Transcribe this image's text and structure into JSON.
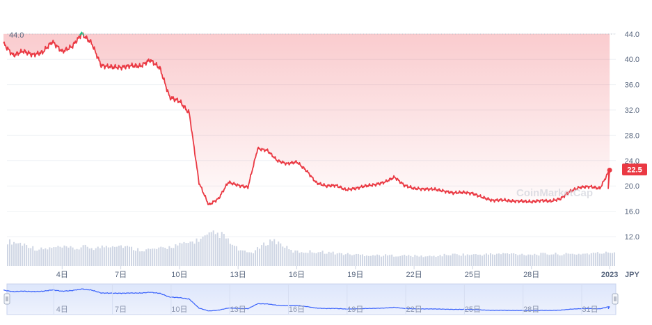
{
  "chart_data": {
    "type": "area",
    "currency": "JPY",
    "y_ticks": [
      "12.0",
      "16.0",
      "20.0",
      "24.0",
      "28.0",
      "32.0",
      "36.0",
      "40.0",
      "44.0"
    ],
    "ylim": [
      12,
      45
    ],
    "x_ticks": [
      "4日",
      "7日",
      "10日",
      "13日",
      "16日",
      "19日",
      "22日",
      "25日",
      "28日",
      "2023"
    ],
    "navigator_ticks": [
      "4日",
      "7日",
      "10日",
      "13日",
      "16日",
      "19日",
      "22日",
      "25日",
      "28日",
      "31日"
    ],
    "max_label": "44.0",
    "current_price_label": "22.5",
    "watermark": "CoinMarketCap",
    "series": [
      {
        "x": [
          1,
          1.5,
          2,
          2.5,
          3,
          3.5,
          4,
          4.5,
          5,
          5.5,
          6,
          6.5,
          7,
          7.5,
          8,
          8.5,
          9,
          9.5,
          10,
          10.5,
          11,
          11.5,
          12,
          12.5,
          13,
          13.5,
          14,
          14.5,
          15,
          15.5,
          16,
          16.5,
          17,
          17.5,
          18,
          18.5,
          19,
          19.5,
          20,
          20.5,
          21,
          21.5,
          22,
          22.5,
          23,
          23.5,
          24,
          24.5,
          25,
          25.5,
          26,
          26.5,
          27,
          27.5,
          28,
          28.5,
          29,
          29.5,
          30,
          30.5,
          31,
          31.5,
          32
        ],
        "values": [
          42.5,
          40.6,
          41.3,
          40.7,
          41.1,
          42.8,
          41.2,
          42.0,
          44.0,
          42.6,
          39.0,
          38.8,
          38.7,
          39.0,
          38.9,
          39.9,
          38.6,
          34.0,
          33.4,
          31.5,
          20.5,
          17.0,
          18.0,
          20.6,
          20.1,
          19.8,
          25.9,
          25.6,
          24.0,
          23.5,
          23.8,
          22.4,
          20.5,
          20.0,
          20.1,
          19.4,
          19.6,
          20.0,
          20.2,
          20.6,
          21.4,
          20.1,
          19.6,
          19.5,
          19.5,
          19.2,
          18.9,
          19.0,
          18.8,
          18.2,
          17.7,
          17.8,
          17.6,
          17.6,
          17.5,
          17.7,
          17.6,
          18.0,
          19.2,
          19.8,
          19.9,
          19.6,
          22.5
        ]
      }
    ],
    "volume": [
      70,
      66,
      60,
      47,
      49,
      53,
      52,
      49,
      55,
      50,
      57,
      60,
      56,
      48,
      46,
      48,
      50,
      58,
      62,
      70,
      80,
      92,
      88,
      58,
      40,
      38,
      57,
      75,
      62,
      42,
      40,
      41,
      40,
      38,
      35,
      33,
      32,
      31,
      30,
      30,
      30,
      29,
      28,
      27,
      29,
      32,
      33,
      32,
      32,
      33,
      34,
      35,
      34,
      33,
      33,
      34,
      34,
      33,
      34,
      35,
      36,
      37,
      40
    ]
  }
}
